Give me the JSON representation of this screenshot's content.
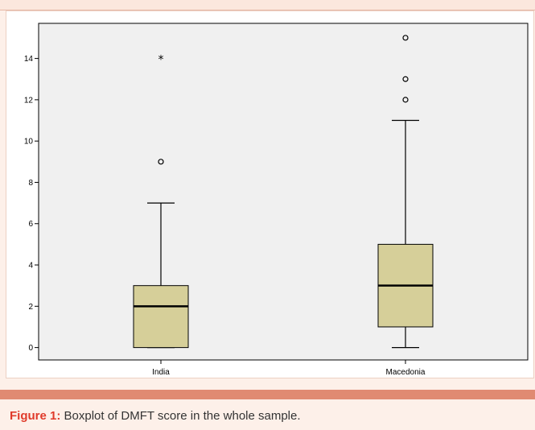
{
  "colors": {
    "plot_background": "#f0f0f0",
    "box_fill": "#d6cf99",
    "box_stroke": "#000000",
    "caption_band": "#e08a72",
    "caption_label": "#e03a2a"
  },
  "chart_data": {
    "type": "boxplot",
    "title": "",
    "xlabel": "",
    "ylabel": "",
    "ylim": [
      -0.6,
      15.7
    ],
    "yticks": [
      0,
      2,
      4,
      6,
      8,
      10,
      12,
      14
    ],
    "categories": [
      "India",
      "Macedonia"
    ],
    "boxes": [
      {
        "category": "India",
        "whisker_low": 0,
        "q1": 0,
        "median": 2,
        "q3": 3,
        "whisker_high": 7,
        "outliers": [
          9
        ],
        "extremes": [
          14
        ]
      },
      {
        "category": "Macedonia",
        "whisker_low": 0,
        "q1": 1,
        "median": 3,
        "q3": 5,
        "whisker_high": 11,
        "outliers": [
          12,
          13,
          15
        ],
        "extremes": []
      }
    ],
    "grid": false,
    "legend": "none"
  },
  "caption": {
    "label": "Figure 1:",
    "text": " Boxplot of DMFT score in the whole sample."
  }
}
